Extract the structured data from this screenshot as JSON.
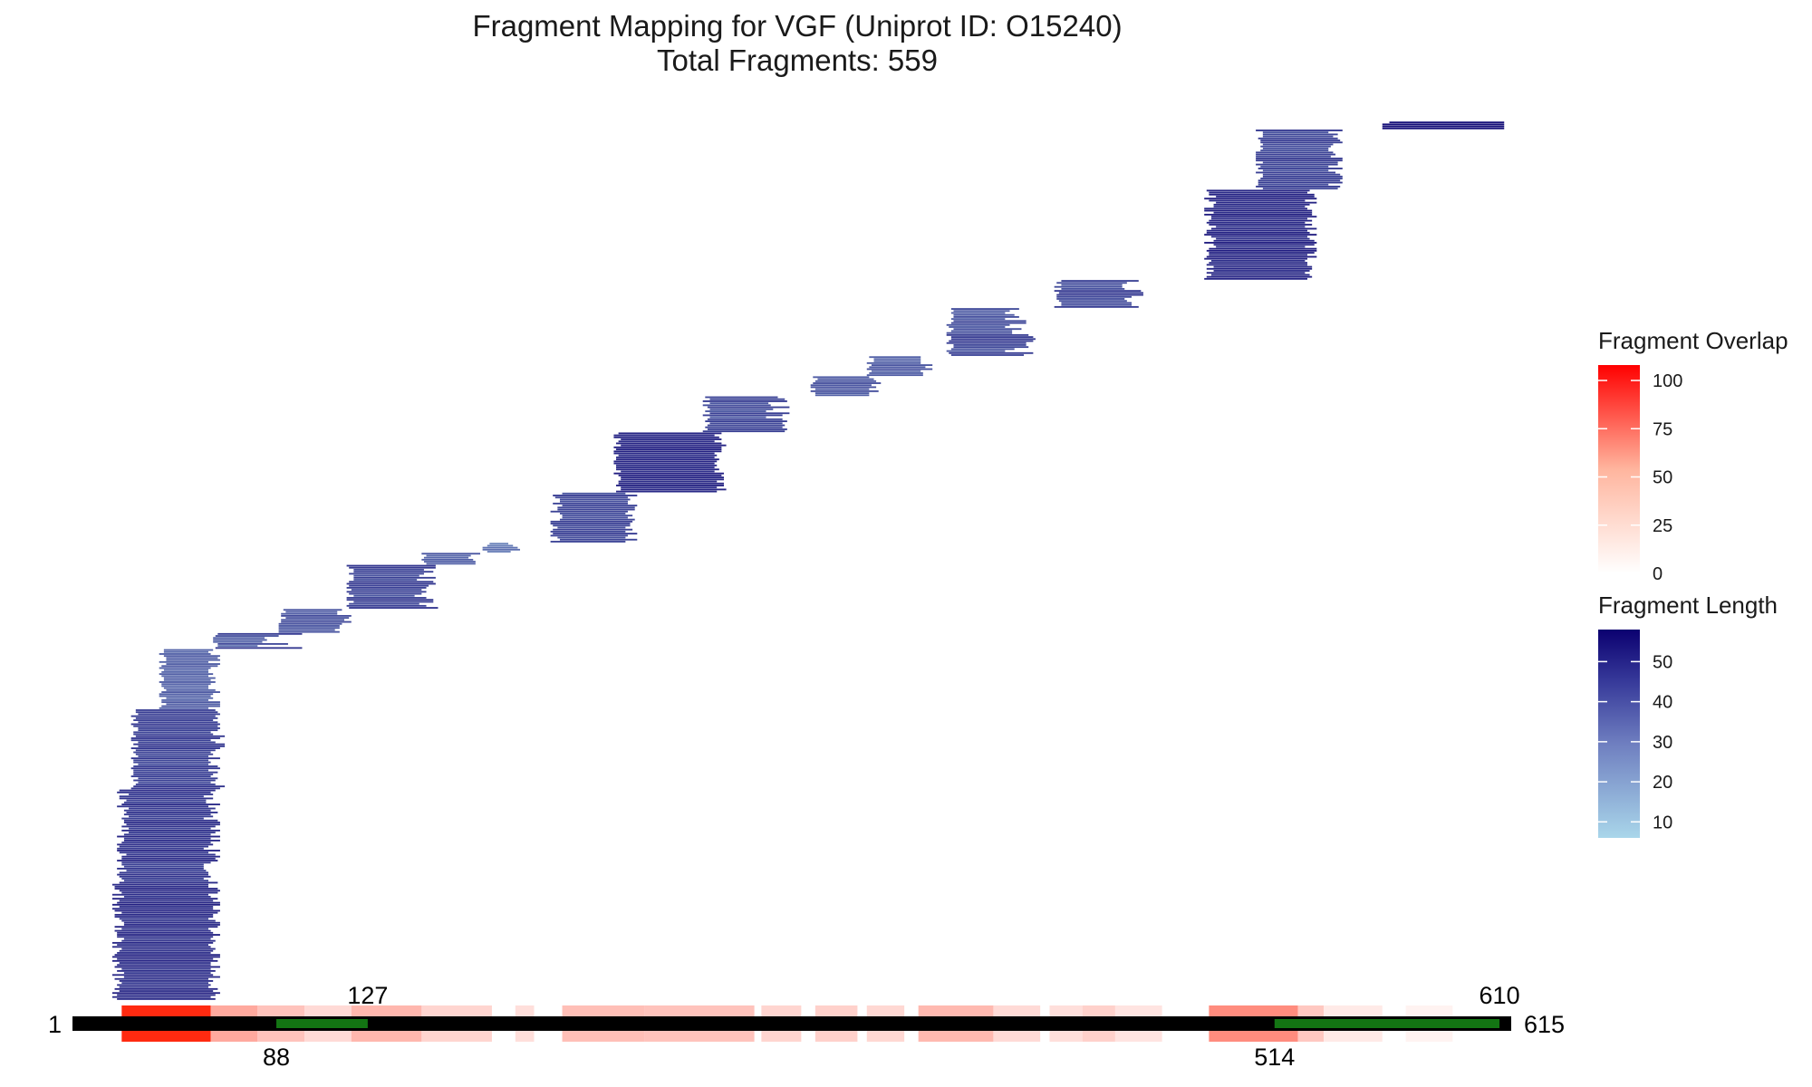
{
  "chart_data": {
    "type": "fragment_map",
    "title": "Fragment Mapping for VGF (Uniprot ID: O15240)",
    "subtitle": "Total Fragments: 559",
    "total_fragments": 559,
    "protein_length": 615,
    "sequence_start": 1,
    "sequence_end": 615,
    "domains": [
      {
        "start": 88,
        "end": 127,
        "color": "#137513"
      },
      {
        "start": 514,
        "end": 610,
        "color": "#137513"
      }
    ],
    "position_labels": {
      "start": "1",
      "end": "615",
      "domain_labels": [
        {
          "text": "127",
          "position": 127,
          "side": "above"
        },
        {
          "text": "88",
          "position": 88,
          "side": "below"
        },
        {
          "text": "610",
          "position": 610,
          "side": "above"
        },
        {
          "text": "514",
          "position": 514,
          "side": "below"
        }
      ]
    },
    "overlap_profile": [
      {
        "start": 22,
        "end": 60,
        "value": 108
      },
      {
        "start": 60,
        "end": 80,
        "value": 35
      },
      {
        "start": 80,
        "end": 100,
        "value": 22
      },
      {
        "start": 100,
        "end": 120,
        "value": 12
      },
      {
        "start": 120,
        "end": 150,
        "value": 28
      },
      {
        "start": 150,
        "end": 180,
        "value": 14
      },
      {
        "start": 190,
        "end": 198,
        "value": 10
      },
      {
        "start": 210,
        "end": 245,
        "value": 24
      },
      {
        "start": 245,
        "end": 292,
        "value": 22
      },
      {
        "start": 295,
        "end": 312,
        "value": 14
      },
      {
        "start": 318,
        "end": 336,
        "value": 16
      },
      {
        "start": 340,
        "end": 356,
        "value": 13
      },
      {
        "start": 362,
        "end": 394,
        "value": 27
      },
      {
        "start": 394,
        "end": 414,
        "value": 12
      },
      {
        "start": 418,
        "end": 432,
        "value": 10
      },
      {
        "start": 432,
        "end": 446,
        "value": 16
      },
      {
        "start": 446,
        "end": 466,
        "value": 8
      },
      {
        "start": 486,
        "end": 524,
        "value": 50
      },
      {
        "start": 524,
        "end": 535,
        "value": 20
      },
      {
        "start": 535,
        "end": 560,
        "value": 6
      },
      {
        "start": 570,
        "end": 590,
        "value": 3
      }
    ],
    "fragment_groups": [
      {
        "start": 20,
        "end": 62,
        "count": 60,
        "span": [
          18,
          62
        ]
      },
      {
        "start": 22,
        "end": 60,
        "count": 45,
        "span": [
          20,
          62
        ]
      },
      {
        "start": 26,
        "end": 62,
        "count": 40,
        "span": [
          26,
          64
        ]
      },
      {
        "start": 38,
        "end": 62,
        "count": 30,
        "span": [
          38,
          62
        ]
      },
      {
        "start": 61,
        "end": 80,
        "count": 8,
        "span": [
          61,
          98
        ]
      },
      {
        "start": 89,
        "end": 115,
        "count": 12,
        "span": [
          89,
          120
        ]
      },
      {
        "start": 118,
        "end": 150,
        "count": 22,
        "span": [
          118,
          156
        ]
      },
      {
        "start": 150,
        "end": 173,
        "count": 6,
        "span": [
          150,
          173
        ]
      },
      {
        "start": 176,
        "end": 190,
        "count": 5,
        "span": [
          176,
          190
        ]
      },
      {
        "start": 207,
        "end": 240,
        "count": 25,
        "span": [
          205,
          240
        ]
      },
      {
        "start": 232,
        "end": 278,
        "count": 30,
        "span": [
          232,
          278
        ]
      },
      {
        "start": 270,
        "end": 300,
        "count": 18,
        "span": [
          270,
          305
        ]
      },
      {
        "start": 316,
        "end": 344,
        "count": 10,
        "span": [
          316,
          344
        ]
      },
      {
        "start": 340,
        "end": 366,
        "count": 10,
        "span": [
          340,
          366
        ]
      },
      {
        "start": 374,
        "end": 400,
        "count": 24,
        "span": [
          374,
          410
        ]
      },
      {
        "start": 420,
        "end": 452,
        "count": 14,
        "span": [
          420,
          456
        ]
      },
      {
        "start": 486,
        "end": 530,
        "count": 45,
        "span": [
          484,
          530
        ]
      },
      {
        "start": 506,
        "end": 540,
        "count": 30,
        "span": [
          506,
          541
        ]
      },
      {
        "start": 560,
        "end": 615,
        "count": 4,
        "span": [
          560,
          605
        ]
      }
    ],
    "legends": [
      {
        "title": "Fragment Overlap",
        "min": 0,
        "max": 108,
        "ticks": [
          0,
          25,
          50,
          75,
          100
        ],
        "color_low": "#ffffff",
        "color_high": "#ff0000"
      },
      {
        "title": "Fragment Length",
        "min": 6,
        "max": 58,
        "ticks": [
          10,
          20,
          30,
          40,
          50
        ],
        "color_low": "#a9d6ea",
        "color_high": "#0b0070"
      }
    ],
    "colors": {
      "sequence_bar": "#000000",
      "domain": "#137513",
      "overlap_high": "#ff0000",
      "length_low": "#a9d6ea",
      "length_high": "#0b0070"
    }
  }
}
